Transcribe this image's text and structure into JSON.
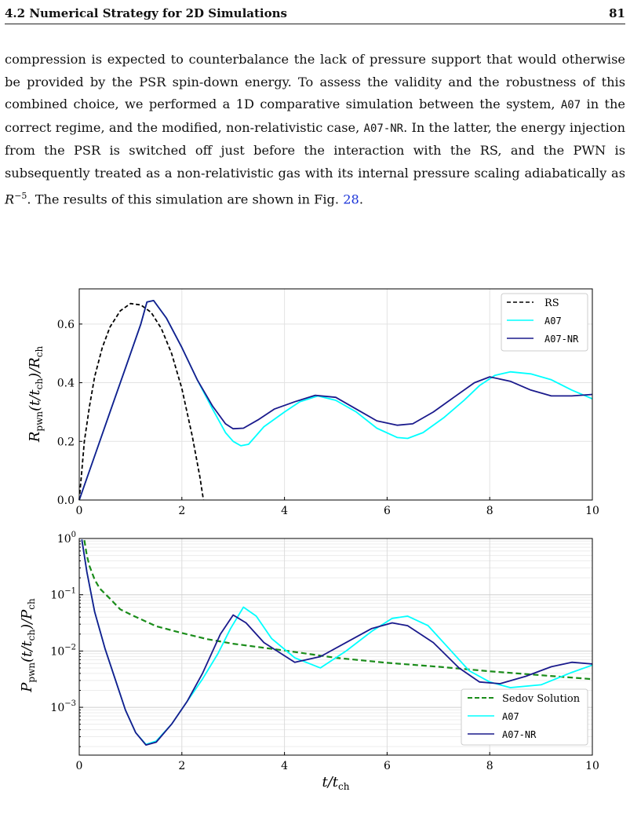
{
  "header": {
    "section": "4.2 Numerical Strategy for 2D Simulations",
    "page_number": "81"
  },
  "body": {
    "p1": "compression is expected to counterbalance the lack of pressure support that would otherwise be provided by the PSR spin-down energy. To assess the validity and the robustness of this combined choice, we performed a 1D comparative simulation between the system, ",
    "code1": "A07",
    "p2": " in the correct regime, and the modified, non-relativistic case, ",
    "code2": "A07-NR",
    "p3": ". In the latter, the energy injection from the PSR is switched off just before the interaction with the RS, and the PWN is subsequently treated as a non-relativistic gas with its internal pressure scaling adiabatically as ",
    "math_base": "R",
    "math_exp": "−5",
    "p4": ". The results of this simulation are shown in Fig. ",
    "fig_ref": "28",
    "p5": "."
  },
  "chart_data": [
    {
      "type": "line",
      "ylabel": "R_pwn(t/t_ch)/R_ch",
      "xlim": [
        0,
        10
      ],
      "ylim": [
        0,
        0.72
      ],
      "xticks": [
        "0",
        "2",
        "4",
        "6",
        "8",
        "10"
      ],
      "yticks": [
        "0.0",
        "0.2",
        "0.4",
        "0.6"
      ],
      "grid": true,
      "legend": "top-right",
      "series": [
        {
          "name": "RS",
          "color": "#000000",
          "dash": "dashed",
          "points": [
            [
              0,
              0
            ],
            [
              0.05,
              0.1
            ],
            [
              0.1,
              0.2
            ],
            [
              0.2,
              0.32
            ],
            [
              0.3,
              0.42
            ],
            [
              0.45,
              0.52
            ],
            [
              0.6,
              0.59
            ],
            [
              0.8,
              0.645
            ],
            [
              1.0,
              0.67
            ],
            [
              1.2,
              0.665
            ],
            [
              1.4,
              0.64
            ],
            [
              1.6,
              0.585
            ],
            [
              1.8,
              0.5
            ],
            [
              2.0,
              0.38
            ],
            [
              2.2,
              0.22
            ],
            [
              2.35,
              0.08
            ],
            [
              2.42,
              0.0
            ]
          ]
        },
        {
          "name": "A07",
          "color": "#00ffff",
          "dash": "solid",
          "points": [
            [
              0,
              0
            ],
            [
              0.3,
              0.15
            ],
            [
              0.6,
              0.3
            ],
            [
              0.9,
              0.45
            ],
            [
              1.2,
              0.6
            ],
            [
              1.32,
              0.675
            ],
            [
              1.45,
              0.68
            ],
            [
              1.7,
              0.62
            ],
            [
              2.0,
              0.52
            ],
            [
              2.3,
              0.41
            ],
            [
              2.6,
              0.31
            ],
            [
              2.85,
              0.23
            ],
            [
              3.0,
              0.2
            ],
            [
              3.15,
              0.185
            ],
            [
              3.3,
              0.19
            ],
            [
              3.6,
              0.25
            ],
            [
              4.0,
              0.3
            ],
            [
              4.3,
              0.335
            ],
            [
              4.65,
              0.355
            ],
            [
              5.0,
              0.34
            ],
            [
              5.4,
              0.3
            ],
            [
              5.8,
              0.245
            ],
            [
              6.2,
              0.213
            ],
            [
              6.4,
              0.21
            ],
            [
              6.7,
              0.23
            ],
            [
              7.1,
              0.28
            ],
            [
              7.5,
              0.34
            ],
            [
              7.8,
              0.39
            ],
            [
              8.1,
              0.425
            ],
            [
              8.4,
              0.437
            ],
            [
              8.8,
              0.43
            ],
            [
              9.2,
              0.41
            ],
            [
              9.6,
              0.375
            ],
            [
              10,
              0.345
            ]
          ]
        },
        {
          "name": "A07-NR",
          "color": "#1a1a8c",
          "dash": "solid",
          "points": [
            [
              0,
              0
            ],
            [
              0.3,
              0.15
            ],
            [
              0.6,
              0.3
            ],
            [
              0.9,
              0.45
            ],
            [
              1.2,
              0.6
            ],
            [
              1.32,
              0.675
            ],
            [
              1.45,
              0.68
            ],
            [
              1.7,
              0.62
            ],
            [
              2.0,
              0.52
            ],
            [
              2.3,
              0.41
            ],
            [
              2.6,
              0.32
            ],
            [
              2.85,
              0.26
            ],
            [
              3.0,
              0.243
            ],
            [
              3.2,
              0.245
            ],
            [
              3.5,
              0.275
            ],
            [
              3.8,
              0.31
            ],
            [
              4.2,
              0.335
            ],
            [
              4.6,
              0.357
            ],
            [
              5.0,
              0.35
            ],
            [
              5.4,
              0.31
            ],
            [
              5.8,
              0.27
            ],
            [
              6.2,
              0.255
            ],
            [
              6.5,
              0.26
            ],
            [
              6.9,
              0.3
            ],
            [
              7.3,
              0.35
            ],
            [
              7.7,
              0.4
            ],
            [
              8.0,
              0.42
            ],
            [
              8.4,
              0.405
            ],
            [
              8.8,
              0.375
            ],
            [
              9.2,
              0.355
            ],
            [
              9.6,
              0.355
            ],
            [
              10,
              0.36
            ]
          ]
        }
      ]
    },
    {
      "type": "line",
      "xlabel": "t/t_ch",
      "ylabel": "P_pwn(t/t_ch)/P_ch",
      "xlim": [
        0,
        10
      ],
      "ylim_log10": [
        -3.85,
        0
      ],
      "yscale": "log",
      "xticks": [
        "0",
        "2",
        "4",
        "6",
        "8",
        "10"
      ],
      "yticks": [
        "10^0",
        "10^-1",
        "10^-2",
        "10^-3"
      ],
      "grid": true,
      "legend": "bottom-right",
      "series": [
        {
          "name": "Sedov Solution",
          "color": "#1a8c1a",
          "dash": "dashed",
          "points": [
            [
              0.1,
              -0.03
            ],
            [
              0.15,
              -0.31
            ],
            [
              0.2,
              -0.49
            ],
            [
              0.3,
              -0.73
            ],
            [
              0.4,
              -0.89
            ],
            [
              0.6,
              -1.07
            ],
            [
              0.8,
              -1.26
            ],
            [
              1.0,
              -1.35
            ],
            [
              1.5,
              -1.56
            ],
            [
              2.0,
              -1.68
            ],
            [
              2.5,
              -1.79
            ],
            [
              3.0,
              -1.87
            ],
            [
              4.0,
              -1.99
            ],
            [
              5.0,
              -2.12
            ],
            [
              6.0,
              -2.21
            ],
            [
              7.0,
              -2.28
            ],
            [
              8.0,
              -2.36
            ],
            [
              9.0,
              -2.43
            ],
            [
              10.0,
              -2.5
            ]
          ]
        },
        {
          "name": "A07",
          "color": "#00ffff",
          "dash": "solid",
          "points": [
            [
              0.05,
              -0.02
            ],
            [
              0.15,
              -0.6
            ],
            [
              0.3,
              -1.3
            ],
            [
              0.5,
              -1.95
            ],
            [
              0.7,
              -2.5
            ],
            [
              0.9,
              -3.05
            ],
            [
              1.1,
              -3.45
            ],
            [
              1.3,
              -3.66
            ],
            [
              1.5,
              -3.6
            ],
            [
              1.8,
              -3.3
            ],
            [
              2.1,
              -2.9
            ],
            [
              2.4,
              -2.5
            ],
            [
              2.7,
              -2.05
            ],
            [
              2.95,
              -1.6
            ],
            [
              3.2,
              -1.22
            ],
            [
              3.45,
              -1.38
            ],
            [
              3.75,
              -1.78
            ],
            [
              4.2,
              -2.12
            ],
            [
              4.7,
              -2.3
            ],
            [
              5.2,
              -2.0
            ],
            [
              5.7,
              -1.65
            ],
            [
              6.1,
              -1.42
            ],
            [
              6.4,
              -1.38
            ],
            [
              6.8,
              -1.55
            ],
            [
              7.2,
              -1.95
            ],
            [
              7.6,
              -2.35
            ],
            [
              8.0,
              -2.55
            ],
            [
              8.4,
              -2.65
            ],
            [
              9.0,
              -2.6
            ],
            [
              9.6,
              -2.38
            ],
            [
              10,
              -2.25
            ]
          ]
        },
        {
          "name": "A07-NR",
          "color": "#1a1a8c",
          "dash": "solid",
          "points": [
            [
              0.05,
              -0.02
            ],
            [
              0.15,
              -0.6
            ],
            [
              0.3,
              -1.3
            ],
            [
              0.5,
              -1.95
            ],
            [
              0.7,
              -2.5
            ],
            [
              0.9,
              -3.05
            ],
            [
              1.1,
              -3.45
            ],
            [
              1.3,
              -3.67
            ],
            [
              1.5,
              -3.62
            ],
            [
              1.8,
              -3.3
            ],
            [
              2.1,
              -2.9
            ],
            [
              2.4,
              -2.4
            ],
            [
              2.75,
              -1.7
            ],
            [
              3.0,
              -1.36
            ],
            [
              3.25,
              -1.5
            ],
            [
              3.6,
              -1.85
            ],
            [
              4.2,
              -2.2
            ],
            [
              4.7,
              -2.1
            ],
            [
              5.2,
              -1.85
            ],
            [
              5.7,
              -1.6
            ],
            [
              6.1,
              -1.5
            ],
            [
              6.4,
              -1.55
            ],
            [
              6.9,
              -1.85
            ],
            [
              7.4,
              -2.3
            ],
            [
              7.8,
              -2.55
            ],
            [
              8.2,
              -2.58
            ],
            [
              8.7,
              -2.45
            ],
            [
              9.2,
              -2.28
            ],
            [
              9.6,
              -2.2
            ],
            [
              10,
              -2.23
            ]
          ]
        }
      ]
    }
  ],
  "legend_labels": {
    "rs": "RS",
    "a07": "A07",
    "a07nr": "A07-NR",
    "sedov": "Sedov Solution"
  },
  "axis_labels": {
    "top_y_main": "R",
    "top_y_sub": "pwn",
    "top_y_mid": "(t/t",
    "top_y_sub2": "ch",
    "top_y_end": ")/R",
    "top_y_sub3": "ch",
    "bot_y_main": "P",
    "bot_y_sub": "pwn",
    "bot_y_mid": "(t/t",
    "bot_y_sub2": "ch",
    "bot_y_end": ")/P",
    "bot_y_sub3": "ch",
    "x_main": "t/t",
    "x_sub": "ch"
  }
}
